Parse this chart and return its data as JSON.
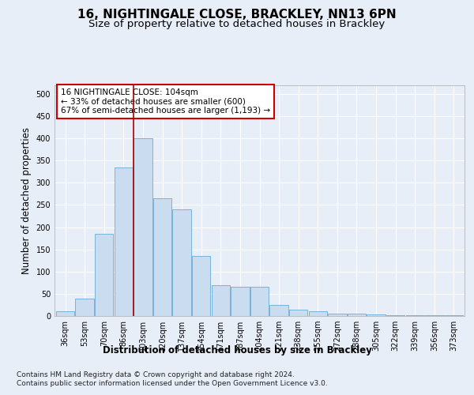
{
  "title": "16, NIGHTINGALE CLOSE, BRACKLEY, NN13 6PN",
  "subtitle": "Size of property relative to detached houses in Brackley",
  "xlabel": "Distribution of detached houses by size in Brackley",
  "ylabel": "Number of detached properties",
  "footer_line1": "Contains HM Land Registry data © Crown copyright and database right 2024.",
  "footer_line2": "Contains public sector information licensed under the Open Government Licence v3.0.",
  "categories": [
    "36sqm",
    "53sqm",
    "70sqm",
    "86sqm",
    "103sqm",
    "120sqm",
    "137sqm",
    "154sqm",
    "171sqm",
    "187sqm",
    "204sqm",
    "221sqm",
    "238sqm",
    "255sqm",
    "272sqm",
    "288sqm",
    "305sqm",
    "322sqm",
    "339sqm",
    "356sqm",
    "373sqm"
  ],
  "bar_values": [
    10,
    40,
    185,
    335,
    400,
    265,
    240,
    135,
    70,
    65,
    65,
    25,
    15,
    10,
    5,
    5,
    3,
    2,
    1,
    1,
    2
  ],
  "bar_color": "#c9dcf0",
  "bar_edge_color": "#6aaad4",
  "red_line_index": 4,
  "red_line_color": "#aa0000",
  "annotation_text": "16 NIGHTINGALE CLOSE: 104sqm\n← 33% of detached houses are smaller (600)\n67% of semi-detached houses are larger (1,193) →",
  "annotation_box_color": "#ffffff",
  "annotation_box_edge": "#cc0000",
  "ylim": [
    0,
    520
  ],
  "yticks": [
    0,
    50,
    100,
    150,
    200,
    250,
    300,
    350,
    400,
    450,
    500
  ],
  "bg_color": "#e8eef8",
  "plot_bg_color": "#e8eef8",
  "grid_color": "#ffffff",
  "title_fontsize": 11,
  "subtitle_fontsize": 9.5,
  "axis_label_fontsize": 8.5,
  "tick_fontsize": 7,
  "footer_fontsize": 6.5,
  "annotation_fontsize": 7.5
}
